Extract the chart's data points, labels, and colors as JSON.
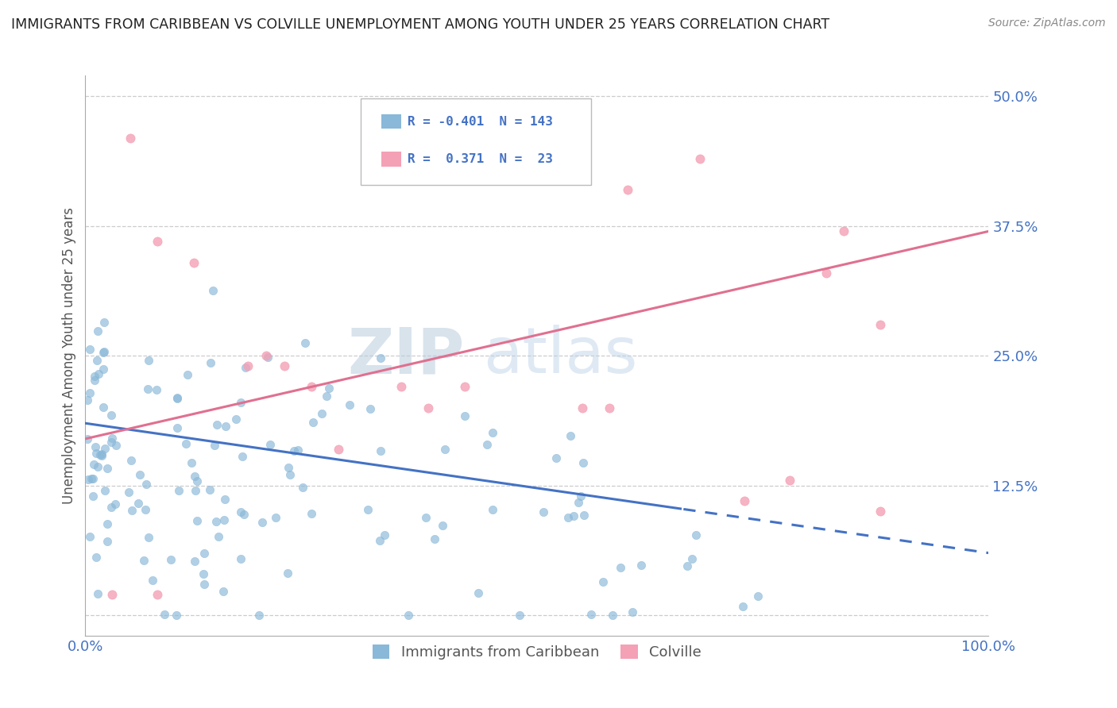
{
  "title": "IMMIGRANTS FROM CARIBBEAN VS COLVILLE UNEMPLOYMENT AMONG YOUTH UNDER 25 YEARS CORRELATION CHART",
  "source": "Source: ZipAtlas.com",
  "ylabel": "Unemployment Among Youth under 25 years",
  "xlim": [
    0.0,
    100.0
  ],
  "ylim": [
    -2.0,
    52.0
  ],
  "yticks": [
    0,
    12.5,
    25.0,
    37.5,
    50.0
  ],
  "xticks": [
    0,
    100
  ],
  "blue_color": "#89b8d8",
  "pink_color": "#f4a0b5",
  "blue_R": -0.401,
  "blue_N": 143,
  "pink_R": 0.371,
  "pink_N": 23,
  "blue_line_slope": -0.125,
  "blue_line_intercept": 18.5,
  "blue_solid_end": 66,
  "pink_line_slope": 0.2,
  "pink_line_intercept": 17.0,
  "watermark_text": "ZIPatlas",
  "legend_label_blue": "Immigrants from Caribbean",
  "legend_label_pink": "Colville",
  "blue_line_color": "#4472c4",
  "pink_line_color": "#e07090",
  "grid_color": "#cccccc",
  "axis_tick_color": "#4472c4",
  "title_color": "#222222",
  "source_color": "#888888",
  "ylabel_color": "#555555"
}
